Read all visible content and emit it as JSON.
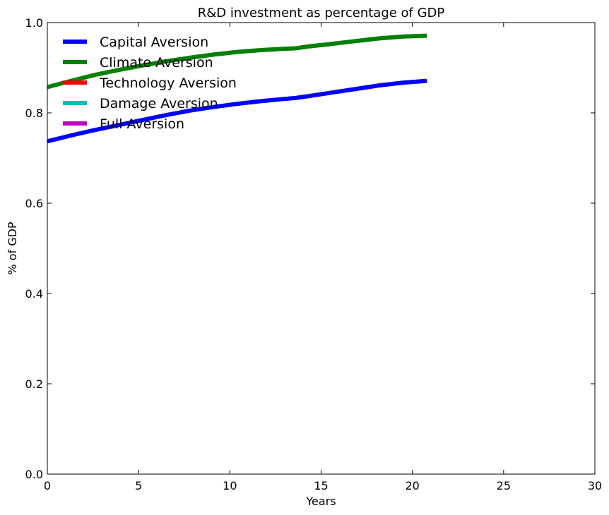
{
  "chart_data": {
    "type": "line",
    "title": "R&D investment as percentage of  GDP",
    "xlabel": "Years",
    "ylabel": "% of GDP",
    "xlim": [
      0,
      30
    ],
    "ylim": [
      0.0,
      1.0
    ],
    "xticks": [
      "0",
      "5",
      "10",
      "15",
      "20",
      "25",
      "30"
    ],
    "yticks": [
      "0.0",
      "0.2",
      "0.4",
      "0.6",
      "0.8",
      "1.0"
    ],
    "grid": false,
    "legend_position": "top-left",
    "series": [
      {
        "name": "Capital Aversion",
        "color": "#0000ff",
        "x": [
          0,
          1.3,
          2.6,
          3.9,
          5.2,
          6.5,
          7.8,
          9.1,
          10.4,
          11.7,
          13.0,
          13.6,
          14.3,
          15.6,
          16.9,
          18.2,
          19.5,
          20.8
        ],
        "y": [
          0.737,
          0.75,
          0.762,
          0.773,
          0.784,
          0.795,
          0.805,
          0.813,
          0.82,
          0.826,
          0.831,
          0.833,
          0.837,
          0.845,
          0.853,
          0.861,
          0.867,
          0.871
        ]
      },
      {
        "name": "Climate Aversion",
        "color": "#008000",
        "x": [
          0,
          1.3,
          2.6,
          3.9,
          5.2,
          6.5,
          7.8,
          9.1,
          10.4,
          11.7,
          13.0,
          13.6,
          14.3,
          15.6,
          16.9,
          18.2,
          19.5,
          20.8
        ],
        "y": [
          0.857,
          0.871,
          0.884,
          0.895,
          0.905,
          0.914,
          0.922,
          0.929,
          0.935,
          0.939,
          0.942,
          0.943,
          0.947,
          0.953,
          0.959,
          0.965,
          0.969,
          0.971
        ]
      },
      {
        "name": "Technology Aversion",
        "color": "#ff0000",
        "x": [],
        "y": []
      },
      {
        "name": "Damage Aversion",
        "color": "#00bfbf",
        "x": [],
        "y": []
      },
      {
        "name": "Full Aversion",
        "color": "#bf00bf",
        "x": [],
        "y": []
      }
    ]
  }
}
